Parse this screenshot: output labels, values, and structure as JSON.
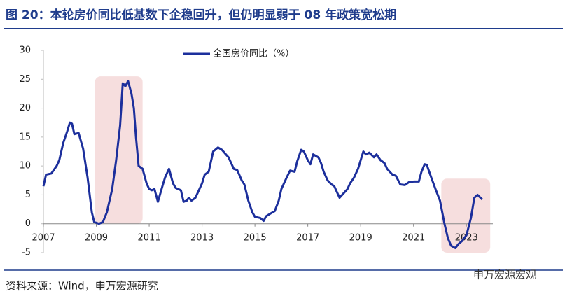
{
  "title": "图 20：本轮房价同比低基数下企稳回升，但仍明显弱于 08 年政策宽松期",
  "source": "资料来源：Wind，申万宏源研究",
  "watermark": "申万宏源宏观",
  "chart_data": {
    "type": "line",
    "x": [
      2007.0,
      2007.1,
      2007.3,
      2007.5,
      2007.6,
      2007.75,
      2007.9,
      2008.0,
      2008.08,
      2008.17,
      2008.33,
      2008.5,
      2008.67,
      2008.83,
      2008.92,
      2009.1,
      2009.25,
      2009.4,
      2009.6,
      2009.75,
      2009.9,
      2010.0,
      2010.1,
      2010.2,
      2010.33,
      2010.42,
      2010.5,
      2010.6,
      2010.75,
      2010.9,
      2011.0,
      2011.1,
      2011.2,
      2011.33,
      2011.5,
      2011.6,
      2011.75,
      2011.9,
      2012.0,
      2012.2,
      2012.3,
      2012.42,
      2012.5,
      2012.6,
      2012.75,
      2012.9,
      2013.0,
      2013.1,
      2013.25,
      2013.42,
      2013.6,
      2013.75,
      2013.9,
      2014.0,
      2014.2,
      2014.33,
      2014.5,
      2014.6,
      2014.75,
      2014.9,
      2015.0,
      2015.2,
      2015.33,
      2015.42,
      2015.6,
      2015.75,
      2015.9,
      2016.0,
      2016.2,
      2016.33,
      2016.5,
      2016.6,
      2016.75,
      2016.85,
      2017.0,
      2017.1,
      2017.2,
      2017.4,
      2017.5,
      2017.6,
      2017.75,
      2017.9,
      2018.0,
      2018.2,
      2018.3,
      2018.5,
      2018.6,
      2018.75,
      2018.9,
      2019.0,
      2019.1,
      2019.2,
      2019.33,
      2019.5,
      2019.6,
      2019.75,
      2019.9,
      2020.0,
      2020.2,
      2020.33,
      2020.5,
      2020.67,
      2020.83,
      2021.0,
      2021.2,
      2021.3,
      2021.42,
      2021.5,
      2021.67,
      2021.83,
      2022.0,
      2022.17,
      2022.3,
      2022.42,
      2022.58,
      2022.7,
      2022.83,
      2023.0,
      2023.17,
      2023.3,
      2023.42,
      2023.6
    ],
    "series": [
      {
        "name": "全国房价同比（%）",
        "color": "#1c2f9c",
        "values": [
          6.5,
          8.5,
          8.7,
          10,
          11,
          14,
          16,
          17.5,
          17.3,
          15.5,
          15.7,
          13,
          8,
          2,
          0.3,
          0,
          0.3,
          2,
          6,
          11,
          17,
          24.3,
          23.8,
          24.7,
          22.5,
          20,
          15,
          10,
          9.5,
          7,
          6,
          5.8,
          6,
          3.8,
          6.5,
          8,
          9.5,
          7,
          6.2,
          5.8,
          3.8,
          4,
          4.5,
          4,
          4.5,
          6,
          7,
          8.5,
          9,
          12.5,
          13.2,
          12.8,
          12,
          11.5,
          9.5,
          9.3,
          7.5,
          6.8,
          4,
          2,
          1.2,
          1,
          0.5,
          1.3,
          1.8,
          2.2,
          4,
          6,
          8,
          9.2,
          9,
          10.8,
          12.8,
          12.5,
          11,
          10.3,
          12,
          11.5,
          10.5,
          9,
          7.5,
          6.8,
          6.5,
          4.5,
          5,
          6,
          7,
          8,
          9.5,
          11,
          12.5,
          12,
          12.3,
          11.5,
          12,
          11,
          10.5,
          9.5,
          8.5,
          8.3,
          6.8,
          6.7,
          7.2,
          7.3,
          7.3,
          9,
          10.3,
          10.2,
          8,
          6,
          4,
          0,
          -2.5,
          -3.8,
          -4.2,
          -3.5,
          -3,
          -2,
          1,
          4.5,
          5,
          4.2
        ]
      }
    ],
    "shaded_regions": [
      {
        "x": [
          2008.95,
          2010.75
        ],
        "y": [
          0,
          25.5
        ]
      },
      {
        "x": [
          2022.05,
          2023.9
        ],
        "y": [
          -5,
          7.8
        ]
      }
    ],
    "shade_color": "#f6dede",
    "xlim": [
      2007,
      2024
    ],
    "xticks": [
      2007,
      2009,
      2011,
      2013,
      2015,
      2017,
      2019,
      2021,
      2023
    ],
    "ylim": [
      -5,
      30
    ],
    "yticks": [
      -5,
      0,
      5,
      10,
      15,
      20,
      25,
      30
    ]
  }
}
